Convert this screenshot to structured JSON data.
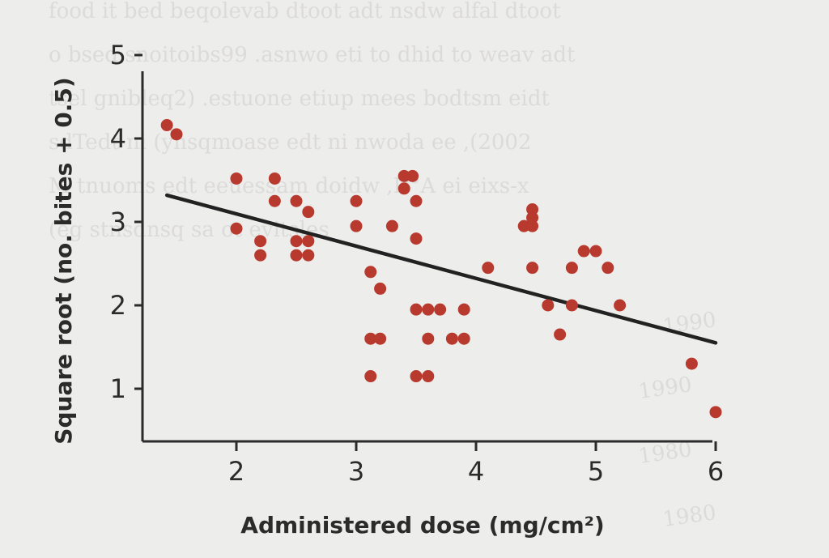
{
  "chart_data": {
    "type": "scatter",
    "xlabel": "Administered dose (mg/cm²)",
    "ylabel": "Square root (no. bites + 0.5)",
    "xlim": [
      1.2,
      6.1
    ],
    "ylim": [
      0.45,
      5.0
    ],
    "x_ticks": [
      2,
      3,
      4,
      5,
      6
    ],
    "y_ticks": [
      1,
      2,
      3,
      4,
      5
    ],
    "grid": false,
    "point_color": "#b8392e",
    "line_color": "#222222",
    "points": [
      {
        "x": 1.42,
        "y": 4.16
      },
      {
        "x": 1.5,
        "y": 4.05
      },
      {
        "x": 2.0,
        "y": 3.52
      },
      {
        "x": 2.0,
        "y": 2.92
      },
      {
        "x": 2.2,
        "y": 2.77
      },
      {
        "x": 2.2,
        "y": 2.6
      },
      {
        "x": 2.32,
        "y": 3.52
      },
      {
        "x": 2.32,
        "y": 3.25
      },
      {
        "x": 2.5,
        "y": 3.25
      },
      {
        "x": 2.5,
        "y": 2.77
      },
      {
        "x": 2.5,
        "y": 2.6
      },
      {
        "x": 2.6,
        "y": 3.12
      },
      {
        "x": 2.6,
        "y": 2.77
      },
      {
        "x": 2.6,
        "y": 2.6
      },
      {
        "x": 3.0,
        "y": 3.25
      },
      {
        "x": 3.0,
        "y": 2.95
      },
      {
        "x": 3.12,
        "y": 2.4
      },
      {
        "x": 3.12,
        "y": 1.6
      },
      {
        "x": 3.12,
        "y": 1.15
      },
      {
        "x": 3.2,
        "y": 2.2
      },
      {
        "x": 3.2,
        "y": 1.6
      },
      {
        "x": 3.3,
        "y": 2.95
      },
      {
        "x": 3.4,
        "y": 3.55
      },
      {
        "x": 3.4,
        "y": 3.4
      },
      {
        "x": 3.47,
        "y": 3.55
      },
      {
        "x": 3.5,
        "y": 3.25
      },
      {
        "x": 3.5,
        "y": 2.8
      },
      {
        "x": 3.5,
        "y": 1.95
      },
      {
        "x": 3.5,
        "y": 1.15
      },
      {
        "x": 3.6,
        "y": 1.95
      },
      {
        "x": 3.6,
        "y": 1.6
      },
      {
        "x": 3.6,
        "y": 1.15
      },
      {
        "x": 3.7,
        "y": 1.95
      },
      {
        "x": 3.8,
        "y": 1.6
      },
      {
        "x": 3.9,
        "y": 1.95
      },
      {
        "x": 3.9,
        "y": 1.6
      },
      {
        "x": 4.1,
        "y": 2.45
      },
      {
        "x": 4.4,
        "y": 2.95
      },
      {
        "x": 4.47,
        "y": 2.95
      },
      {
        "x": 4.47,
        "y": 3.15
      },
      {
        "x": 4.47,
        "y": 3.05
      },
      {
        "x": 4.47,
        "y": 2.45
      },
      {
        "x": 4.6,
        "y": 2.0
      },
      {
        "x": 4.7,
        "y": 1.65
      },
      {
        "x": 4.8,
        "y": 2.45
      },
      {
        "x": 4.8,
        "y": 2.0
      },
      {
        "x": 4.9,
        "y": 2.65
      },
      {
        "x": 5.0,
        "y": 2.65
      },
      {
        "x": 5.1,
        "y": 2.45
      },
      {
        "x": 5.2,
        "y": 2.0
      },
      {
        "x": 5.8,
        "y": 1.3
      },
      {
        "x": 6.0,
        "y": 0.72
      }
    ],
    "trendline": {
      "x": [
        1.42,
        6.0
      ],
      "y": [
        3.32,
        1.55
      ]
    }
  }
}
